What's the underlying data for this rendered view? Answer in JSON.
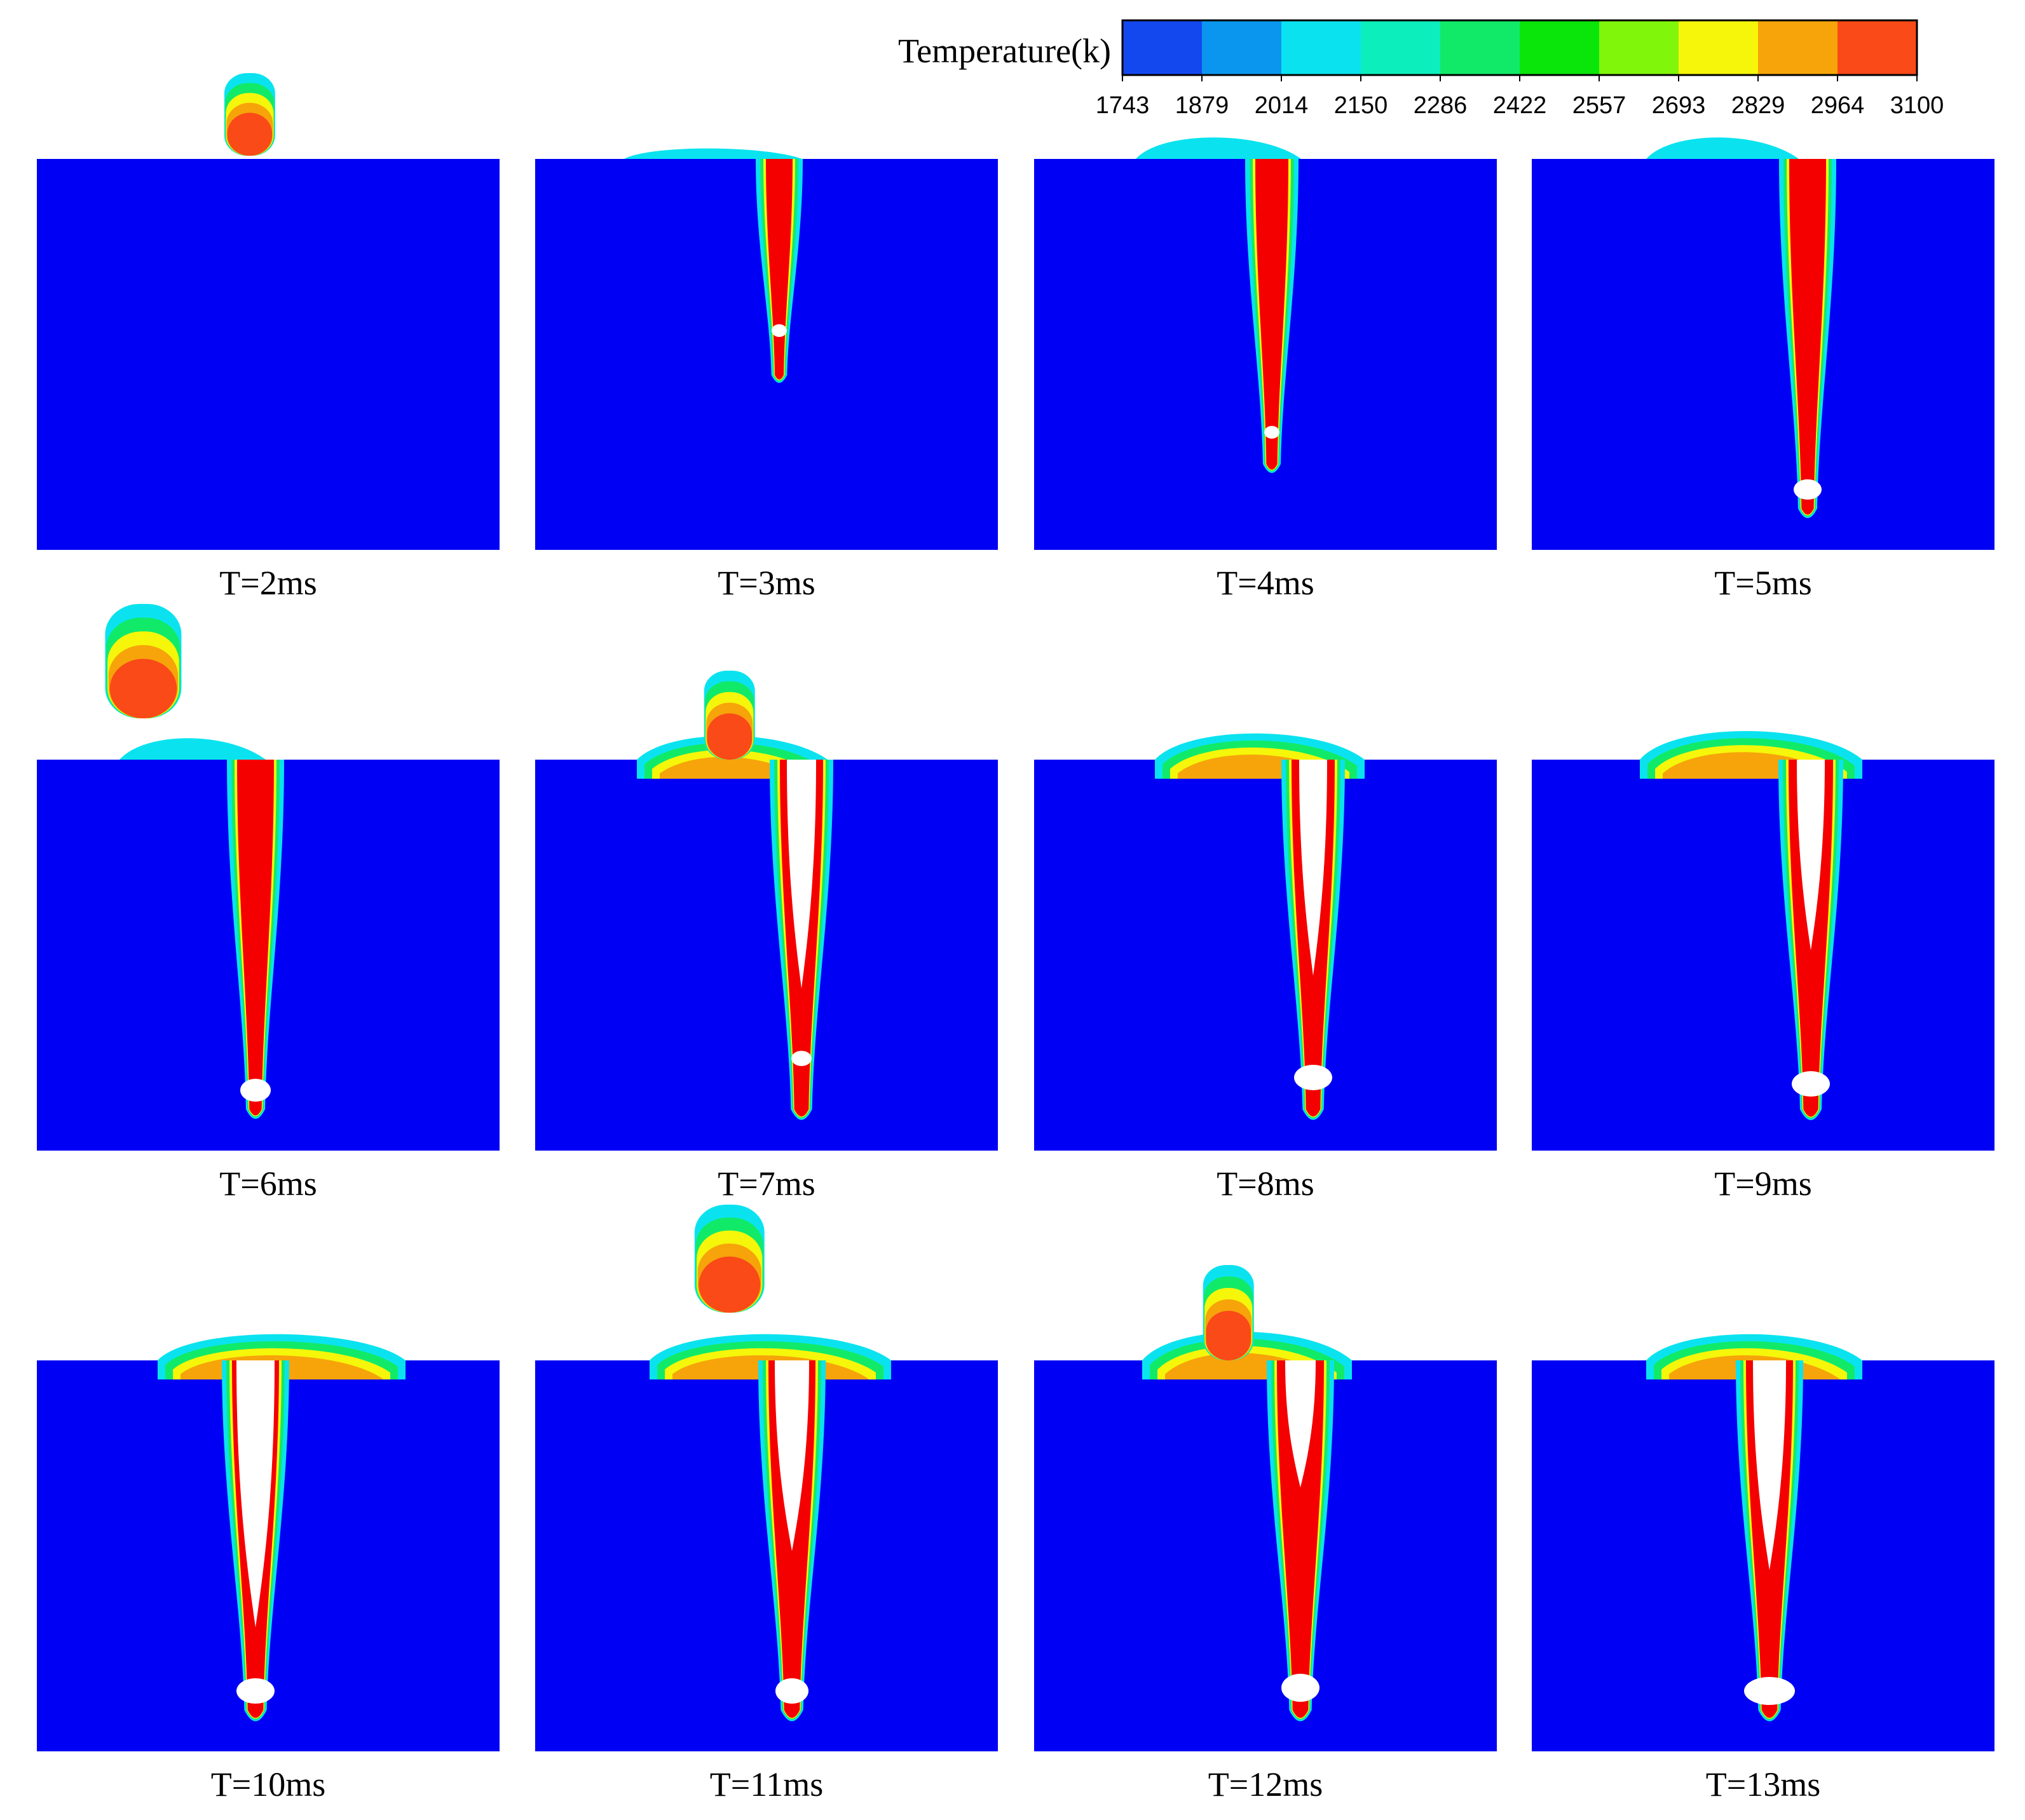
{
  "legend": {
    "title": "Temperature(k)",
    "ticks": [
      "1743",
      "1879",
      "2014",
      "2150",
      "2286",
      "2422",
      "2557",
      "2693",
      "2829",
      "2964",
      "3100"
    ],
    "colors": [
      "#1448ef",
      "#0a96ef",
      "#0ae3ef",
      "#0cefbc",
      "#11ea68",
      "#0ae50a",
      "#80f60a",
      "#f5f60a",
      "#f6a40a",
      "#f94a18"
    ]
  },
  "colors": {
    "substrate": "#0000f5",
    "void": "#ffffff",
    "hot": "#f40000",
    "droplet_core": "#f94a18",
    "droplet_mid": "#f6a40a",
    "droplet_warm": "#f5f60a",
    "droplet_cool": "#11ea68",
    "droplet_cold": "#0ae3ef"
  },
  "panels": [
    {
      "label": "T=2ms"
    },
    {
      "label": "T=3ms"
    },
    {
      "label": "T=4ms"
    },
    {
      "label": "T=5ms"
    },
    {
      "label": "T=6ms"
    },
    {
      "label": "T=7ms"
    },
    {
      "label": "T=8ms"
    },
    {
      "label": "T=9ms"
    },
    {
      "label": "T=10ms"
    },
    {
      "label": "T=11ms"
    },
    {
      "label": "T=12ms"
    },
    {
      "label": "T=13ms"
    }
  ]
}
